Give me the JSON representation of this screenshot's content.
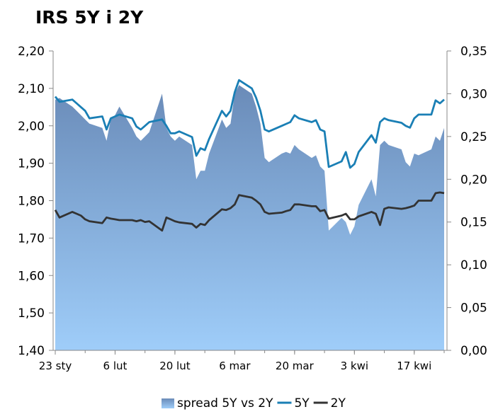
{
  "chart_data": {
    "type": "area",
    "title": "IRS 5Y i 2Y",
    "x_tick_labels": [
      "23 sty",
      "6 lut",
      "20 lut",
      "6 mar",
      "20 mar",
      "3 kwi",
      "17 kwi"
    ],
    "x_tick_dates": [
      "2014-01-23",
      "2014-02-06",
      "2014-02-20",
      "2014-03-06",
      "2014-03-20",
      "2014-04-03",
      "2014-04-17"
    ],
    "x_range": [
      "2014-01-23",
      "2014-04-24"
    ],
    "y_left": {
      "range": [
        1.4,
        2.2
      ],
      "ticks": [
        "1,40",
        "1,50",
        "1,60",
        "1,70",
        "1,80",
        "1,90",
        "2,00",
        "2,10",
        "2,20"
      ]
    },
    "y_right": {
      "range": [
        0,
        0.35
      ],
      "ticks": [
        "0,00",
        "0,05",
        "0,10",
        "0,15",
        "0,20",
        "0,25",
        "0,30",
        "0,35"
      ]
    },
    "legend_position": "bottom",
    "grid": false,
    "series": [
      {
        "name": "spread 5Y vs 2Y",
        "kind": "area",
        "axis": "right",
        "color": "#7a9ec6",
        "points": [
          [
            "2014-01-23",
            0.293
          ],
          [
            "2014-01-24",
            0.295
          ],
          [
            "2014-01-27",
            0.285
          ],
          [
            "2014-01-28",
            0.28
          ],
          [
            "2014-01-29",
            0.275
          ],
          [
            "2014-01-30",
            0.27
          ],
          [
            "2014-01-31",
            0.265
          ],
          [
            "2014-02-03",
            0.26
          ],
          [
            "2014-02-04",
            0.245
          ],
          [
            "2014-02-05",
            0.27
          ],
          [
            "2014-02-06",
            0.275
          ],
          [
            "2014-02-07",
            0.285
          ],
          [
            "2014-02-10",
            0.26
          ],
          [
            "2014-02-11",
            0.25
          ],
          [
            "2014-02-12",
            0.245
          ],
          [
            "2014-02-13",
            0.25
          ],
          [
            "2014-02-14",
            0.255
          ],
          [
            "2014-02-17",
            0.3
          ],
          [
            "2014-02-18",
            0.26
          ],
          [
            "2014-02-19",
            0.25
          ],
          [
            "2014-02-20",
            0.245
          ],
          [
            "2014-02-21",
            0.25
          ],
          [
            "2014-02-24",
            0.24
          ],
          [
            "2014-02-25",
            0.2
          ],
          [
            "2014-02-26",
            0.21
          ],
          [
            "2014-02-27",
            0.21
          ],
          [
            "2014-02-28",
            0.23
          ],
          [
            "2014-03-03",
            0.27
          ],
          [
            "2014-03-04",
            0.26
          ],
          [
            "2014-03-05",
            0.265
          ],
          [
            "2014-03-06",
            0.3
          ],
          [
            "2014-03-07",
            0.31
          ],
          [
            "2014-03-10",
            0.3
          ],
          [
            "2014-03-11",
            0.285
          ],
          [
            "2014-03-12",
            0.265
          ],
          [
            "2014-03-13",
            0.225
          ],
          [
            "2014-03-14",
            0.22
          ],
          [
            "2014-03-17",
            0.23
          ],
          [
            "2014-03-18",
            0.232
          ],
          [
            "2014-03-19",
            0.23
          ],
          [
            "2014-03-20",
            0.24
          ],
          [
            "2014-03-21",
            0.235
          ],
          [
            "2014-03-24",
            0.225
          ],
          [
            "2014-03-25",
            0.228
          ],
          [
            "2014-03-26",
            0.215
          ],
          [
            "2014-03-27",
            0.21
          ],
          [
            "2014-03-28",
            0.14
          ],
          [
            "2014-03-31",
            0.155
          ],
          [
            "2014-04-01",
            0.15
          ],
          [
            "2014-04-02",
            0.135
          ],
          [
            "2014-04-03",
            0.145
          ],
          [
            "2014-04-04",
            0.17
          ],
          [
            "2014-04-07",
            0.2
          ],
          [
            "2014-04-08",
            0.18
          ],
          [
            "2014-04-09",
            0.24
          ],
          [
            "2014-04-10",
            0.245
          ],
          [
            "2014-04-11",
            0.24
          ],
          [
            "2014-04-14",
            0.235
          ],
          [
            "2014-04-15",
            0.22
          ],
          [
            "2014-04-16",
            0.215
          ],
          [
            "2014-04-17",
            0.23
          ],
          [
            "2014-04-18",
            0.228
          ],
          [
            "2014-04-21",
            0.235
          ],
          [
            "2014-04-22",
            0.25
          ],
          [
            "2014-04-23",
            0.245
          ],
          [
            "2014-04-24",
            0.26
          ]
        ]
      },
      {
        "name": "5Y",
        "kind": "line",
        "axis": "left",
        "color": "#1a7fb5",
        "points": [
          [
            "2014-01-23",
            2.078
          ],
          [
            "2014-01-24",
            2.064
          ],
          [
            "2014-01-27",
            2.07
          ],
          [
            "2014-01-28",
            2.06
          ],
          [
            "2014-01-29",
            2.05
          ],
          [
            "2014-01-30",
            2.04
          ],
          [
            "2014-01-31",
            2.02
          ],
          [
            "2014-02-03",
            2.025
          ],
          [
            "2014-02-04",
            1.99
          ],
          [
            "2014-02-05",
            2.02
          ],
          [
            "2014-02-06",
            2.025
          ],
          [
            "2014-02-07",
            2.03
          ],
          [
            "2014-02-10",
            2.02
          ],
          [
            "2014-02-11",
            1.998
          ],
          [
            "2014-02-12",
            1.99
          ],
          [
            "2014-02-13",
            2.0
          ],
          [
            "2014-02-14",
            2.01
          ],
          [
            "2014-02-17",
            2.017
          ],
          [
            "2014-02-18",
            2.0
          ],
          [
            "2014-02-19",
            1.98
          ],
          [
            "2014-02-20",
            1.98
          ],
          [
            "2014-02-21",
            1.985
          ],
          [
            "2014-02-24",
            1.97
          ],
          [
            "2014-02-25",
            1.92
          ],
          [
            "2014-02-26",
            1.94
          ],
          [
            "2014-02-27",
            1.935
          ],
          [
            "2014-02-28",
            1.965
          ],
          [
            "2014-03-03",
            2.04
          ],
          [
            "2014-03-04",
            2.025
          ],
          [
            "2014-03-05",
            2.04
          ],
          [
            "2014-03-06",
            2.09
          ],
          [
            "2014-03-07",
            2.122
          ],
          [
            "2014-03-10",
            2.1
          ],
          [
            "2014-03-11",
            2.075
          ],
          [
            "2014-03-12",
            2.04
          ],
          [
            "2014-03-13",
            1.99
          ],
          [
            "2014-03-14",
            1.985
          ],
          [
            "2014-03-17",
            2.0
          ],
          [
            "2014-03-18",
            2.005
          ],
          [
            "2014-03-19",
            2.01
          ],
          [
            "2014-03-20",
            2.028
          ],
          [
            "2014-03-21",
            2.02
          ],
          [
            "2014-03-24",
            2.01
          ],
          [
            "2014-03-25",
            2.015
          ],
          [
            "2014-03-26",
            1.99
          ],
          [
            "2014-03-27",
            1.985
          ],
          [
            "2014-03-28",
            1.89
          ],
          [
            "2014-03-31",
            1.905
          ],
          [
            "2014-04-01",
            1.93
          ],
          [
            "2014-04-02",
            1.888
          ],
          [
            "2014-04-03",
            1.898
          ],
          [
            "2014-04-04",
            1.93
          ],
          [
            "2014-04-07",
            1.975
          ],
          [
            "2014-04-08",
            1.955
          ],
          [
            "2014-04-09",
            2.01
          ],
          [
            "2014-04-10",
            2.02
          ],
          [
            "2014-04-11",
            2.015
          ],
          [
            "2014-04-14",
            2.008
          ],
          [
            "2014-04-15",
            2.0
          ],
          [
            "2014-04-16",
            1.995
          ],
          [
            "2014-04-17",
            2.02
          ],
          [
            "2014-04-18",
            2.03
          ],
          [
            "2014-04-21",
            2.03
          ],
          [
            "2014-04-22",
            2.068
          ],
          [
            "2014-04-23",
            2.06
          ],
          [
            "2014-04-24",
            2.07
          ]
        ]
      },
      {
        "name": "2Y",
        "kind": "line",
        "axis": "left",
        "color": "#333333",
        "points": [
          [
            "2014-01-23",
            1.775
          ],
          [
            "2014-01-24",
            1.755
          ],
          [
            "2014-01-27",
            1.77
          ],
          [
            "2014-01-28",
            1.765
          ],
          [
            "2014-01-29",
            1.76
          ],
          [
            "2014-01-30",
            1.75
          ],
          [
            "2014-01-31",
            1.745
          ],
          [
            "2014-02-03",
            1.74
          ],
          [
            "2014-02-04",
            1.755
          ],
          [
            "2014-02-05",
            1.752
          ],
          [
            "2014-02-06",
            1.75
          ],
          [
            "2014-02-07",
            1.748
          ],
          [
            "2014-02-10",
            1.748
          ],
          [
            "2014-02-11",
            1.745
          ],
          [
            "2014-02-12",
            1.748
          ],
          [
            "2014-02-13",
            1.743
          ],
          [
            "2014-02-14",
            1.745
          ],
          [
            "2014-02-17",
            1.72
          ],
          [
            "2014-02-18",
            1.755
          ],
          [
            "2014-02-19",
            1.75
          ],
          [
            "2014-02-20",
            1.745
          ],
          [
            "2014-02-21",
            1.742
          ],
          [
            "2014-02-24",
            1.738
          ],
          [
            "2014-02-25",
            1.728
          ],
          [
            "2014-02-26",
            1.738
          ],
          [
            "2014-02-27",
            1.735
          ],
          [
            "2014-02-28",
            1.748
          ],
          [
            "2014-03-03",
            1.777
          ],
          [
            "2014-03-04",
            1.775
          ],
          [
            "2014-03-05",
            1.78
          ],
          [
            "2014-03-06",
            1.79
          ],
          [
            "2014-03-07",
            1.815
          ],
          [
            "2014-03-10",
            1.808
          ],
          [
            "2014-03-11",
            1.8
          ],
          [
            "2014-03-12",
            1.79
          ],
          [
            "2014-03-13",
            1.77
          ],
          [
            "2014-03-14",
            1.765
          ],
          [
            "2014-03-17",
            1.768
          ],
          [
            "2014-03-18",
            1.772
          ],
          [
            "2014-03-19",
            1.775
          ],
          [
            "2014-03-20",
            1.79
          ],
          [
            "2014-03-21",
            1.79
          ],
          [
            "2014-03-24",
            1.785
          ],
          [
            "2014-03-25",
            1.785
          ],
          [
            "2014-03-26",
            1.772
          ],
          [
            "2014-03-27",
            1.775
          ],
          [
            "2014-03-28",
            1.752
          ],
          [
            "2014-03-31",
            1.76
          ],
          [
            "2014-04-01",
            1.765
          ],
          [
            "2014-04-02",
            1.75
          ],
          [
            "2014-04-03",
            1.75
          ],
          [
            "2014-04-04",
            1.758
          ],
          [
            "2014-04-07",
            1.77
          ],
          [
            "2014-04-08",
            1.765
          ],
          [
            "2014-04-09",
            1.735
          ],
          [
            "2014-04-10",
            1.778
          ],
          [
            "2014-04-11",
            1.782
          ],
          [
            "2014-04-14",
            1.778
          ],
          [
            "2014-04-15",
            1.78
          ],
          [
            "2014-04-16",
            1.783
          ],
          [
            "2014-04-17",
            1.787
          ],
          [
            "2014-04-18",
            1.8
          ],
          [
            "2014-04-21",
            1.8
          ],
          [
            "2014-04-22",
            1.82
          ],
          [
            "2014-04-23",
            1.822
          ],
          [
            "2014-04-24",
            1.82
          ]
        ]
      }
    ]
  }
}
